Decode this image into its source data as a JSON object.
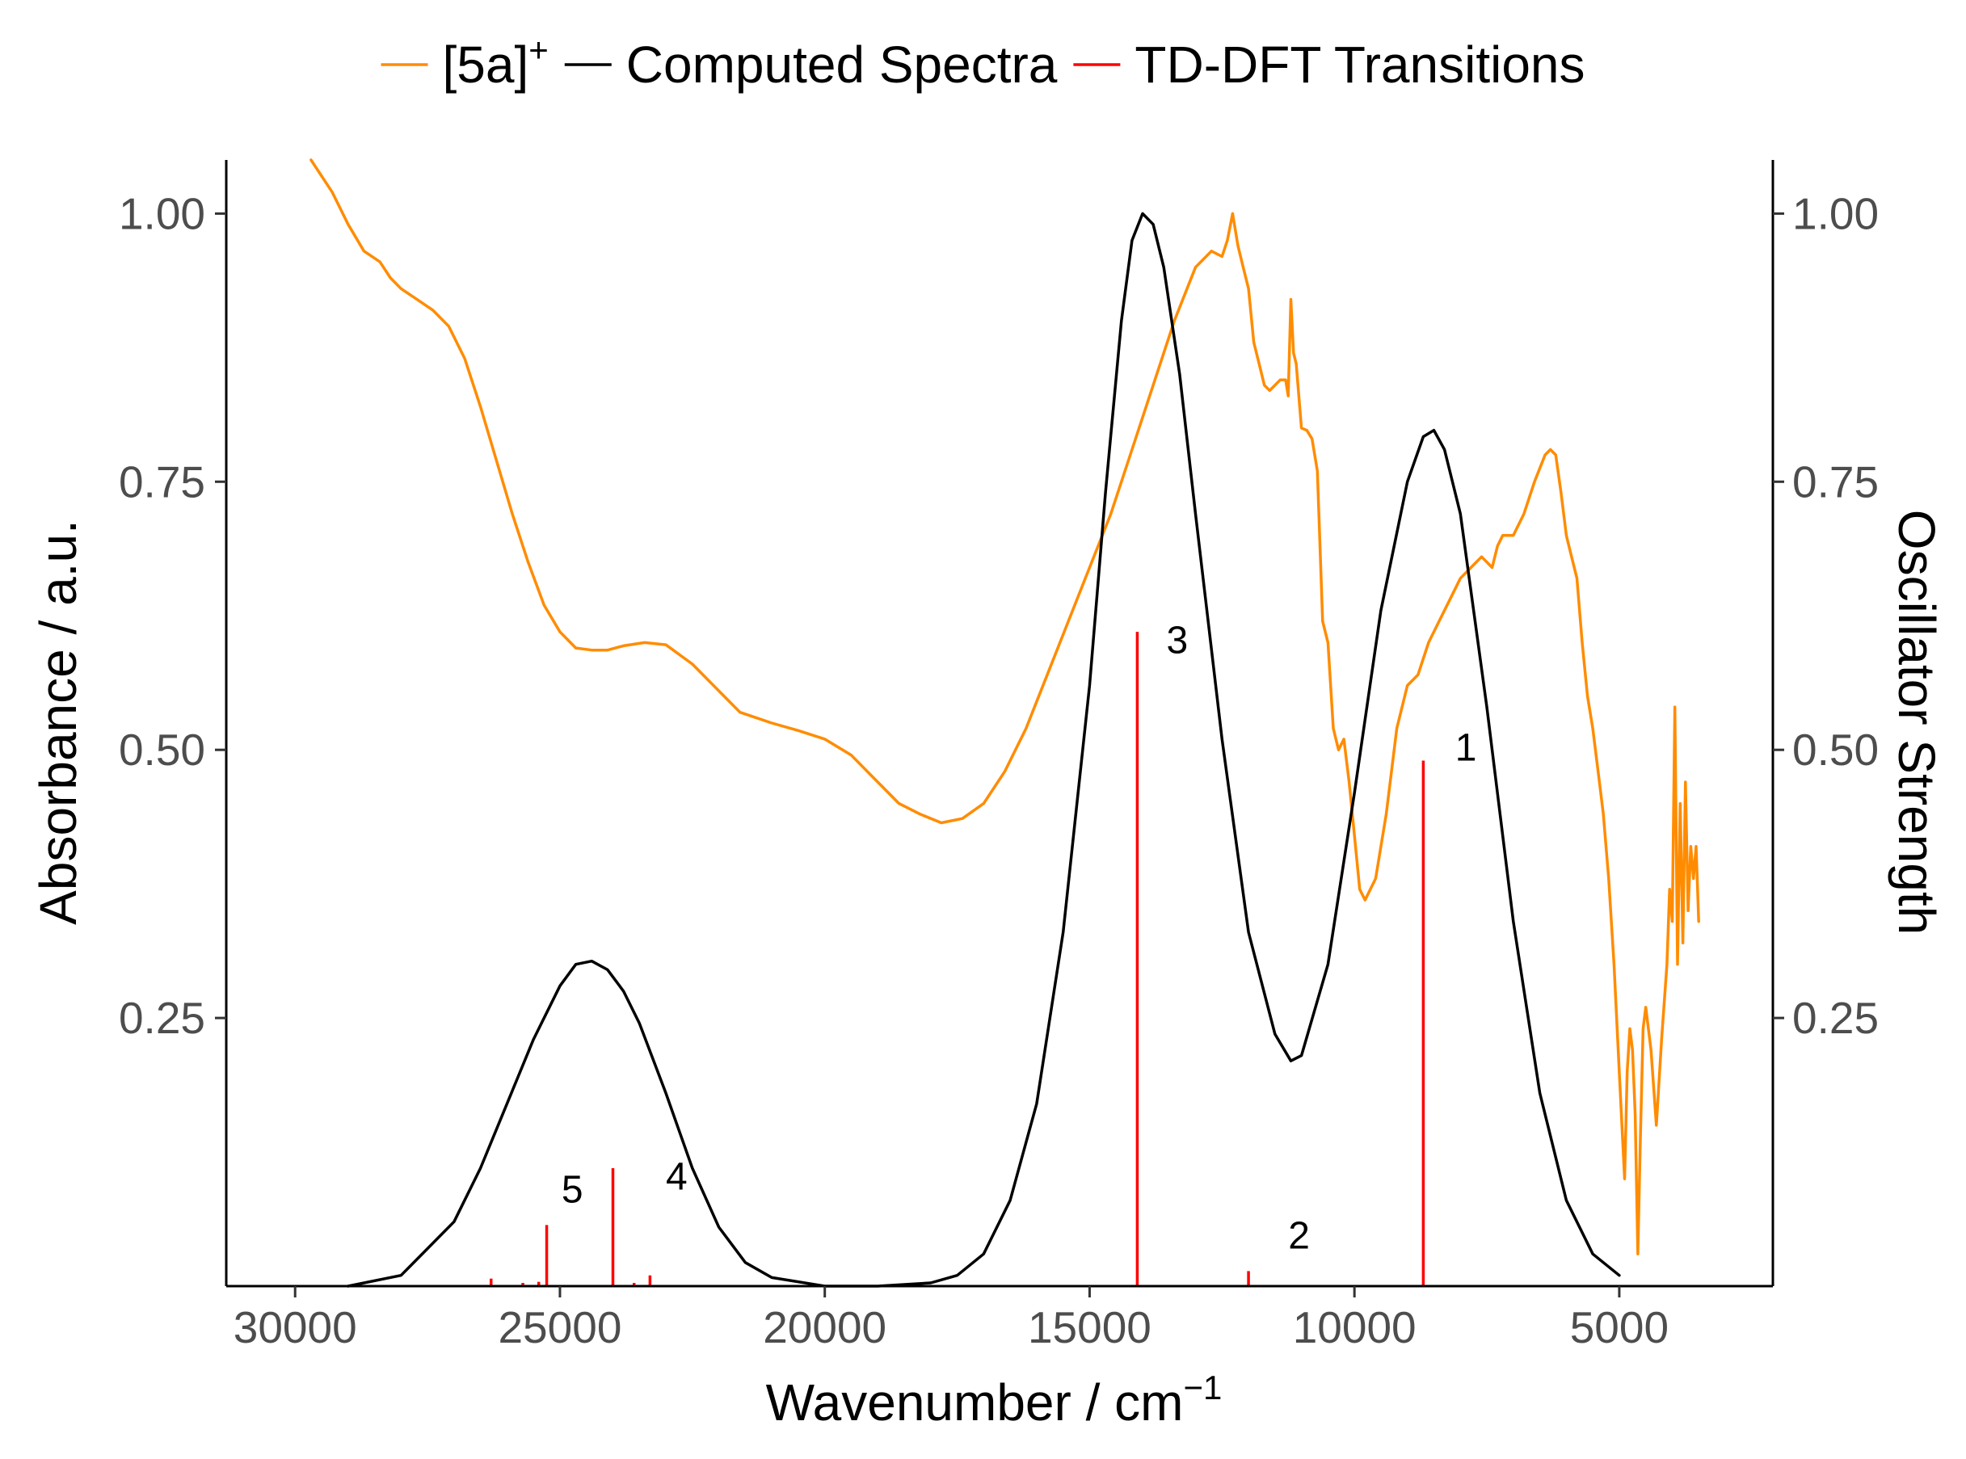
{
  "chart_data": {
    "type": "line",
    "title": "",
    "xlabel": "Wavenumber / cm",
    "xlabel_sup": "−1",
    "ylabel": "Absorbance / a.u.",
    "y2label": "Oscillator Strength",
    "x_reversed": true,
    "xlim": [
      31300,
      2100
    ],
    "ylim": [
      0,
      1.05
    ],
    "y2lim": [
      0,
      1.05
    ],
    "x_ticks": [
      30000,
      25000,
      20000,
      15000,
      10000,
      5000
    ],
    "y_ticks": [
      0.25,
      0.5,
      0.75,
      1.0
    ],
    "y2_ticks": [
      0.25,
      0.5,
      0.75,
      1.0
    ],
    "grid": false,
    "legend_position": "top",
    "legend": [
      {
        "label": "[5a]",
        "sup": "+",
        "color": "#FF8C00"
      },
      {
        "label": "Computed Spectra",
        "sup": "",
        "color": "#000000"
      },
      {
        "label": "TD-DFT Transitions",
        "sup": "",
        "color": "#FF0000"
      }
    ],
    "series": [
      {
        "name": "[5a]+",
        "color": "#FF8C00",
        "x": [
          29700,
          29300,
          29000,
          28700,
          28400,
          28200,
          28000,
          27700,
          27400,
          27100,
          26800,
          26500,
          26200,
          25900,
          25600,
          25300,
          25000,
          24700,
          24400,
          24100,
          23800,
          23400,
          23000,
          22500,
          22000,
          21600,
          21000,
          20500,
          20000,
          19500,
          19000,
          18600,
          18200,
          17800,
          17400,
          17000,
          16600,
          16200,
          15800,
          15400,
          15000,
          14600,
          14200,
          13800,
          13400,
          13000,
          12700,
          12500,
          12400,
          12300,
          12200,
          12100,
          12000,
          11900,
          11800,
          11700,
          11600,
          11500,
          11400,
          11300,
          11250,
          11200,
          11150,
          11100,
          11000,
          10900,
          10800,
          10700,
          10600,
          10500,
          10400,
          10300,
          10200,
          10100,
          10000,
          9900,
          9800,
          9600,
          9400,
          9200,
          9000,
          8800,
          8600,
          8400,
          8200,
          8000,
          7800,
          7600,
          7400,
          7300,
          7200,
          7100,
          7000,
          6800,
          6600,
          6400,
          6300,
          6200,
          6100,
          6000,
          5950,
          5900,
          5800,
          5700,
          5600,
          5500,
          5400,
          5300,
          5200,
          5100,
          5000,
          4950,
          4900,
          4850,
          4800,
          4750,
          4700,
          4650,
          4600,
          4550,
          4500,
          4400,
          4300,
          4200,
          4100,
          4050,
          4000,
          3950,
          3900,
          3850,
          3800,
          3750,
          3700,
          3650,
          3600,
          3550,
          3500
        ],
        "y": [
          1.05,
          1.02,
          0.99,
          0.965,
          0.955,
          0.94,
          0.93,
          0.92,
          0.91,
          0.895,
          0.865,
          0.82,
          0.77,
          0.72,
          0.675,
          0.635,
          0.61,
          0.595,
          0.593,
          0.593,
          0.597,
          0.6,
          0.598,
          0.58,
          0.555,
          0.535,
          0.525,
          0.518,
          0.51,
          0.495,
          0.47,
          0.45,
          0.44,
          0.432,
          0.436,
          0.45,
          0.48,
          0.52,
          0.57,
          0.62,
          0.67,
          0.72,
          0.78,
          0.84,
          0.9,
          0.95,
          0.965,
          0.96,
          0.975,
          1.0,
          0.97,
          0.95,
          0.93,
          0.88,
          0.86,
          0.84,
          0.835,
          0.84,
          0.845,
          0.845,
          0.83,
          0.92,
          0.87,
          0.86,
          0.8,
          0.798,
          0.79,
          0.76,
          0.62,
          0.6,
          0.52,
          0.5,
          0.51,
          0.47,
          0.42,
          0.37,
          0.36,
          0.38,
          0.44,
          0.52,
          0.56,
          0.57,
          0.6,
          0.62,
          0.64,
          0.66,
          0.67,
          0.68,
          0.67,
          0.69,
          0.7,
          0.7,
          0.7,
          0.72,
          0.75,
          0.775,
          0.78,
          0.775,
          0.74,
          0.7,
          0.69,
          0.68,
          0.66,
          0.6,
          0.55,
          0.52,
          0.48,
          0.44,
          0.38,
          0.3,
          0.2,
          0.15,
          0.1,
          0.2,
          0.24,
          0.22,
          0.16,
          0.03,
          0.14,
          0.24,
          0.26,
          0.22,
          0.15,
          0.23,
          0.3,
          0.37,
          0.34,
          0.54,
          0.3,
          0.45,
          0.32,
          0.47,
          0.35,
          0.41,
          0.38,
          0.41,
          0.34
        ],
        "stroke_width": 3.5
      },
      {
        "name": "Computed Spectra",
        "color": "#000000",
        "x": [
          29000,
          28000,
          27000,
          26500,
          26000,
          25500,
          25000,
          24700,
          24400,
          24100,
          23800,
          23500,
          23000,
          22500,
          22000,
          21500,
          21000,
          20000,
          19000,
          18000,
          17500,
          17000,
          16500,
          16000,
          15500,
          15000,
          14700,
          14400,
          14200,
          14000,
          13800,
          13600,
          13300,
          13000,
          12500,
          12000,
          11500,
          11200,
          11000,
          10500,
          10000,
          9500,
          9000,
          8700,
          8500,
          8300,
          8000,
          7500,
          7000,
          6500,
          6000,
          5500,
          5000
        ],
        "y": [
          0.0,
          0.01,
          0.06,
          0.11,
          0.17,
          0.23,
          0.28,
          0.3,
          0.303,
          0.295,
          0.275,
          0.245,
          0.18,
          0.11,
          0.055,
          0.022,
          0.008,
          0.0,
          0.0,
          0.003,
          0.01,
          0.03,
          0.08,
          0.17,
          0.33,
          0.56,
          0.74,
          0.9,
          0.975,
          1.0,
          0.99,
          0.95,
          0.85,
          0.72,
          0.51,
          0.33,
          0.235,
          0.21,
          0.215,
          0.3,
          0.46,
          0.63,
          0.75,
          0.792,
          0.798,
          0.78,
          0.72,
          0.54,
          0.34,
          0.18,
          0.08,
          0.03,
          0.01
        ],
        "stroke_width": 3.5
      },
      {
        "name": "TD-DFT Transitions",
        "color": "#FF0000",
        "type": "stick",
        "x": [
          26300,
          25700,
          25400,
          25250,
          24000,
          23600,
          23300,
          14100,
          12000,
          8700
        ],
        "y": [
          0.007,
          0.003,
          0.004,
          0.057,
          0.11,
          0.003,
          0.01,
          0.61,
          0.014,
          0.49
        ],
        "stroke_width": 3.5
      }
    ],
    "annotations": [
      {
        "text": "1",
        "x": 8100,
        "y": 0.49
      },
      {
        "text": "2",
        "x": 11250,
        "y": 0.035
      },
      {
        "text": "3",
        "x": 13550,
        "y": 0.59
      },
      {
        "text": "4",
        "x": 23000,
        "y": 0.09
      },
      {
        "text": "5",
        "x": 24970,
        "y": 0.078
      }
    ]
  }
}
